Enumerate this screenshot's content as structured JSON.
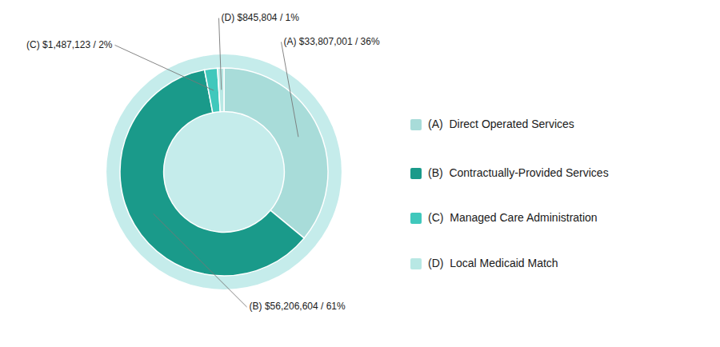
{
  "chart_data": {
    "type": "donut",
    "categories": [
      "(A)  Direct Operated Services",
      "(B)  Contractually-Provided Services",
      "(C)  Managed Care Administration",
      "(D)  Local Medicaid Match"
    ],
    "values": [
      36,
      61,
      2,
      1
    ],
    "value_labels": [
      "(A) $33,807,001 / 36%",
      "(B) $56,206,604 / 61%",
      "(C) $1,487,123 / 2%",
      "(D) $845,804 / 1%"
    ],
    "colors": [
      "#a8dcd9",
      "#1a9a8a",
      "#40c8bc",
      "#b8e8e4"
    ],
    "data_labels": true,
    "legend": "right"
  }
}
